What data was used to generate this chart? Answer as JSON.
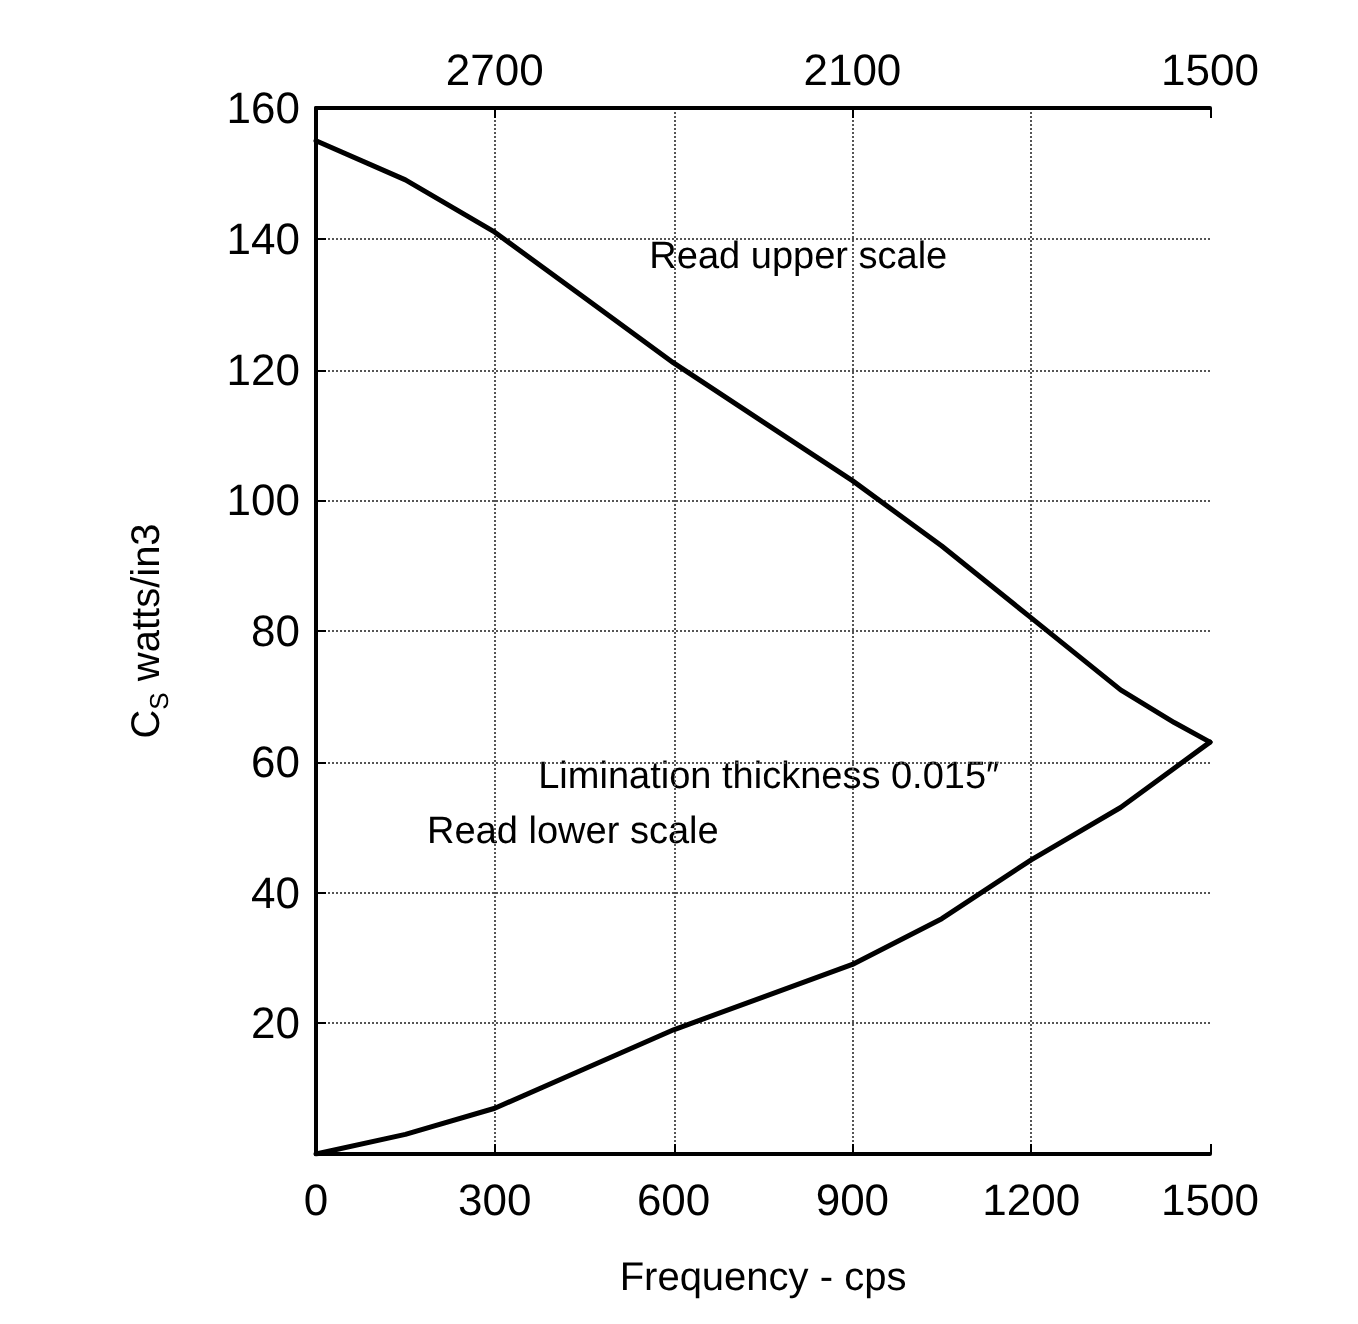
{
  "chart_data": {
    "type": "line",
    "xlabel": "Frequency - cps",
    "ylabel": "C$_{S}$ watts/in3",
    "xlim": [
      0,
      1500
    ],
    "xticks": [
      0,
      300,
      600,
      900,
      1200,
      1500
    ],
    "x2lim": [
      3000,
      1500
    ],
    "x2ticks": [
      2700,
      2100,
      1500
    ],
    "ylim": [
      0,
      160
    ],
    "yticks": [
      20,
      40,
      60,
      80,
      100,
      120,
      140,
      160
    ],
    "grid": true,
    "marker": "none",
    "line_style": "solid",
    "series": [
      {
        "color": "#000000",
        "axis": "x2",
        "x": [
          3000,
          2850,
          2700,
          2550,
          2400,
          2250,
          2100,
          1950,
          1800,
          1650,
          1560,
          1500
        ],
        "values": [
          155,
          149,
          141,
          131,
          121,
          112,
          103,
          93,
          82,
          71,
          66,
          63
        ]
      },
      {
        "color": "#000000",
        "x": [
          0,
          150,
          300,
          450,
          600,
          750,
          900,
          1050,
          1200,
          1350,
          1500
        ],
        "values": [
          0,
          3,
          7,
          13,
          19,
          24,
          29,
          36,
          45,
          53,
          63
        ]
      }
    ],
    "annotations": [
      "Read upper scale",
      "Limination thickness 0.015″",
      "Read lower scale"
    ]
  }
}
